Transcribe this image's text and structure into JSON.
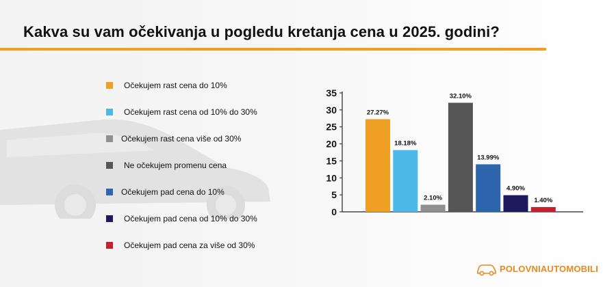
{
  "title": "Kakva su vam očekivanja u pogledu kretanja cena u 2025. godini?",
  "colors": {
    "accent_rule": "#f0a020",
    "series": [
      "#ef9f24",
      "#4cb9e8",
      "#8f8f8f",
      "#555555",
      "#2d66ad",
      "#1d1a5e",
      "#c61f2d"
    ]
  },
  "legend": [
    {
      "label": "Očekujem rast cena do 10%",
      "color": "#ef9f24"
    },
    {
      "label": "Očekujem rast cena od 10% do 30%",
      "color": "#4cb9e8"
    },
    {
      "label": "Očekujem rast cena više od 30%",
      "color": "#8f8f8f"
    },
    {
      "label": "Ne očekujem promenu cena",
      "color": "#555555"
    },
    {
      "label": "Očekujem pad cena do 10%",
      "color": "#2d66ad"
    },
    {
      "label": "Očekujem pad cena od 10% do 30%",
      "color": "#1d1a5e"
    },
    {
      "label": "Očekujem pad cena za više od 30%",
      "color": "#c61f2d"
    }
  ],
  "chart_data": {
    "type": "bar",
    "categories": [
      "Očekujem rast cena do 10%",
      "Očekujem rast cena od 10% do 30%",
      "Očekujem rast cena više od 30%",
      "Ne očekujem promenu cena",
      "Očekujem pad cena do 10%",
      "Očekujem pad cena od 10% do 30%",
      "Očekujem pad cena za više od 30%"
    ],
    "values": [
      27.27,
      18.18,
      2.1,
      32.1,
      13.99,
      4.9,
      1.4
    ],
    "data_labels": [
      "27.27%",
      "18.18%",
      "2.10%",
      "32.10%",
      "13.99%",
      "4.90%",
      "1.40%"
    ],
    "colors": [
      "#ef9f24",
      "#4cb9e8",
      "#8f8f8f",
      "#555555",
      "#2d66ad",
      "#1d1a5e",
      "#c61f2d"
    ],
    "yticks": [
      0,
      5,
      10,
      15,
      20,
      25,
      30,
      35
    ],
    "ylim": [
      0,
      35
    ],
    "grid": false,
    "legend_position": "left"
  },
  "logo": {
    "text_part1": "POLOVNI",
    "text_part2": "AUTOMOBILI",
    "icon": "car-outline-icon"
  }
}
